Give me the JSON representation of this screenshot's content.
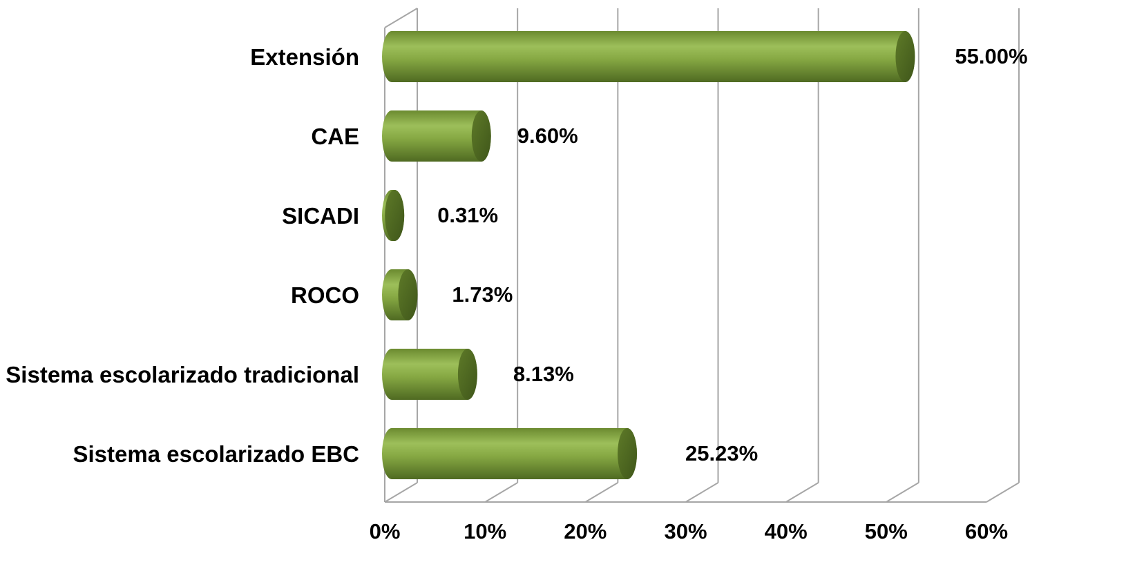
{
  "chart_data": {
    "type": "bar",
    "orientation": "horizontal",
    "style": "3d-cylinder",
    "categories": [
      "Extensión",
      "CAE",
      "SICADI",
      "ROCO",
      "Sistema escolarizado tradicional",
      "Sistema escolarizado EBC"
    ],
    "values": [
      55.0,
      9.6,
      0.31,
      1.73,
      8.13,
      25.23
    ],
    "data_labels": [
      "55.00%",
      "9.60%",
      "0.31%",
      "1.73%",
      "8.13%",
      "25.23%"
    ],
    "xlim": [
      0,
      60
    ],
    "x_ticks": [
      "0%",
      "10%",
      "20%",
      "30%",
      "40%",
      "50%",
      "60%"
    ],
    "title": "",
    "xlabel": "",
    "ylabel": "",
    "grid": true,
    "legend": "none",
    "colors": {
      "bar_light": "#9bbb59",
      "bar_mid": "#77933c",
      "bar_dark": "#4f6228",
      "grid": "#a6a6a6"
    }
  }
}
